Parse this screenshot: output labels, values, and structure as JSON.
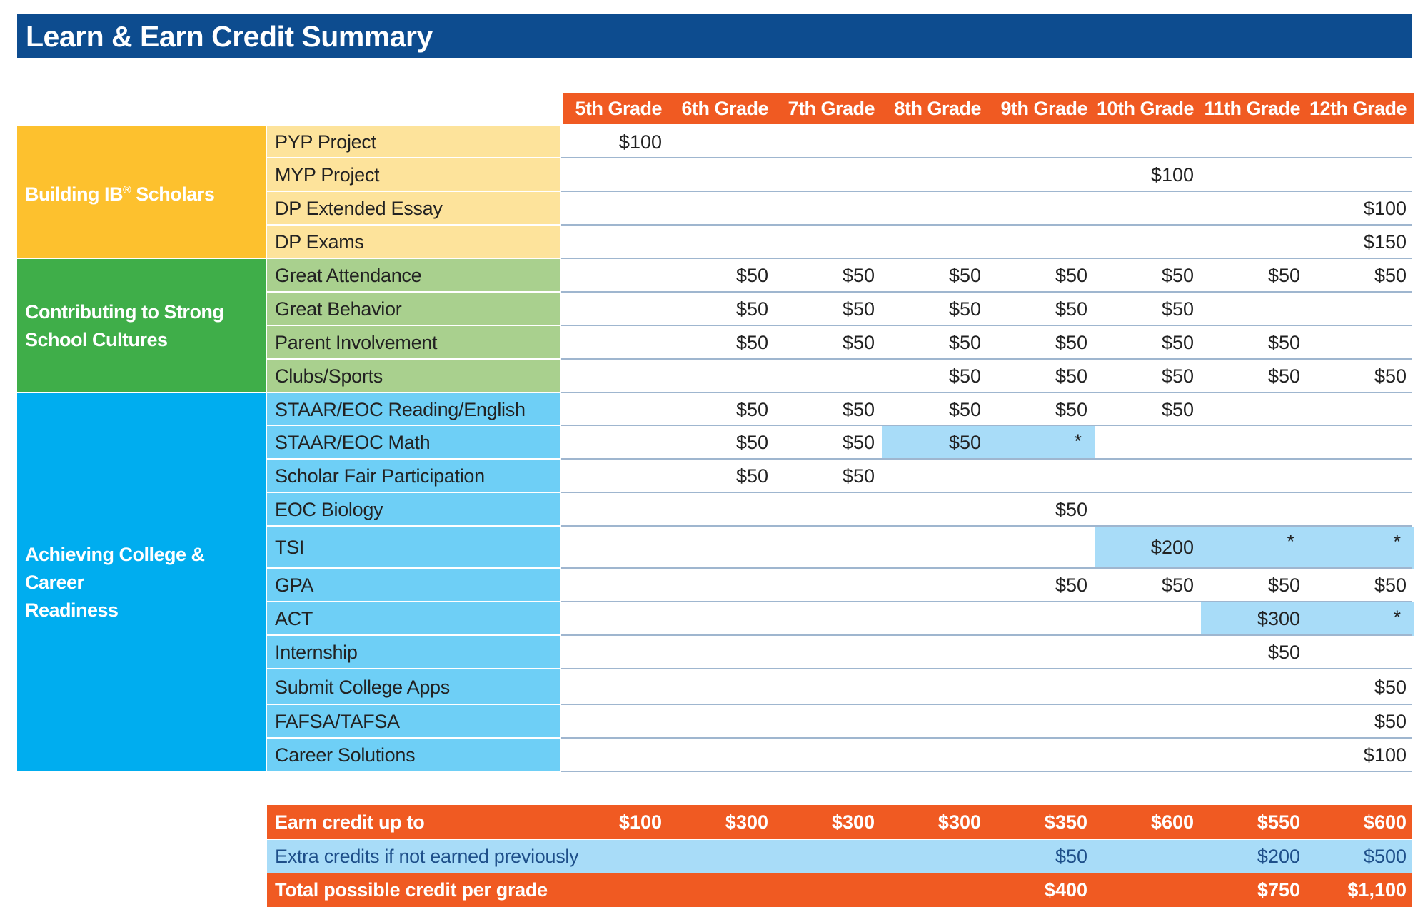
{
  "title": "Learn & Earn Credit Summary",
  "grades": [
    "5th Grade",
    "6th Grade",
    "7th Grade",
    "8th Grade",
    "9th Grade",
    "10th Grade",
    "11th Grade",
    "12th Grade"
  ],
  "colors": {
    "title_bar": "#0d4c8f",
    "orange": "#f05a22",
    "cat_building": "#fdc12e",
    "row_building": "#fde39b",
    "cat_contributing": "#3fae49",
    "row_contributing": "#a9d08e",
    "cat_achieving": "#00adef",
    "row_achieving": "#6ecff6",
    "highlight": "#a8dcf8"
  },
  "categories": [
    {
      "name": "Building IB",
      "sup": "®",
      "suffix": " Scholars"
    },
    {
      "name": "Contributing to Strong",
      "line2": "School Cultures"
    },
    {
      "name": "Achieving College & Career",
      "line2": "Readiness"
    }
  ],
  "rows": [
    {
      "label": "PYP Project",
      "values": [
        "$100",
        "",
        "",
        "",
        "",
        "",
        "",
        ""
      ]
    },
    {
      "label": "MYP Project",
      "values": [
        "",
        "",
        "",
        "",
        "",
        "$100",
        "",
        ""
      ]
    },
    {
      "label": "DP Extended Essay",
      "values": [
        "",
        "",
        "",
        "",
        "",
        "",
        "",
        "$100"
      ]
    },
    {
      "label": "DP Exams",
      "values": [
        "",
        "",
        "",
        "",
        "",
        "",
        "",
        "$150"
      ]
    },
    {
      "label": "Great Attendance",
      "values": [
        "",
        "$50",
        "$50",
        "$50",
        "$50",
        "$50",
        "$50",
        "$50"
      ]
    },
    {
      "label": "Great Behavior",
      "values": [
        "",
        "$50",
        "$50",
        "$50",
        "$50",
        "$50",
        "",
        ""
      ]
    },
    {
      "label": "Parent Involvement",
      "values": [
        "",
        "$50",
        "$50",
        "$50",
        "$50",
        "$50",
        "$50",
        ""
      ]
    },
    {
      "label": "Clubs/Sports",
      "values": [
        "",
        "",
        "",
        "$50",
        "$50",
        "$50",
        "$50",
        "$50"
      ]
    },
    {
      "label": "STAAR/EOC Reading/English",
      "values": [
        "",
        "$50",
        "$50",
        "$50",
        "$50",
        "$50",
        "",
        ""
      ]
    },
    {
      "label": "STAAR/EOC Math",
      "values": [
        "",
        "$50",
        "$50",
        "$50",
        "*",
        "",
        "",
        ""
      ]
    },
    {
      "label": "Scholar Fair Participation",
      "values": [
        "",
        "$50",
        "$50",
        "",
        "",
        "",
        "",
        ""
      ]
    },
    {
      "label": "EOC Biology",
      "values": [
        "",
        "",
        "",
        "",
        "$50",
        "",
        "",
        ""
      ]
    },
    {
      "label": "TSI",
      "values": [
        "",
        "",
        "",
        "",
        "",
        "$200",
        "*",
        "*"
      ]
    },
    {
      "label": "GPA",
      "values": [
        "",
        "",
        "",
        "",
        "$50",
        "$50",
        "$50",
        "$50"
      ]
    },
    {
      "label": "ACT",
      "values": [
        "",
        "",
        "",
        "",
        "",
        "",
        "$300",
        "*"
      ]
    },
    {
      "label": "Internship",
      "values": [
        "",
        "",
        "",
        "",
        "",
        "",
        "$50",
        ""
      ]
    },
    {
      "label": "Submit College Apps",
      "values": [
        "",
        "",
        "",
        "",
        "",
        "",
        "",
        "$50"
      ]
    },
    {
      "label": "FAFSA/TAFSA",
      "values": [
        "",
        "",
        "",
        "",
        "",
        "",
        "",
        "$50"
      ]
    },
    {
      "label": "Career Solutions",
      "values": [
        "",
        "",
        "",
        "",
        "",
        "",
        "",
        "$100"
      ]
    }
  ],
  "summary": [
    {
      "label": "Earn credit up to",
      "values": [
        "$100",
        "$300",
        "$300",
        "$300",
        "$350",
        "$600",
        "$550",
        "$600"
      ]
    },
    {
      "label": "Extra credits if not earned previously",
      "values": [
        "",
        "",
        "",
        "",
        "$50",
        "",
        "$200",
        "$500"
      ]
    },
    {
      "label": "Total possible credit per grade",
      "values": [
        "",
        "",
        "",
        "",
        "$400",
        "",
        "$750",
        "$1,100"
      ]
    }
  ]
}
